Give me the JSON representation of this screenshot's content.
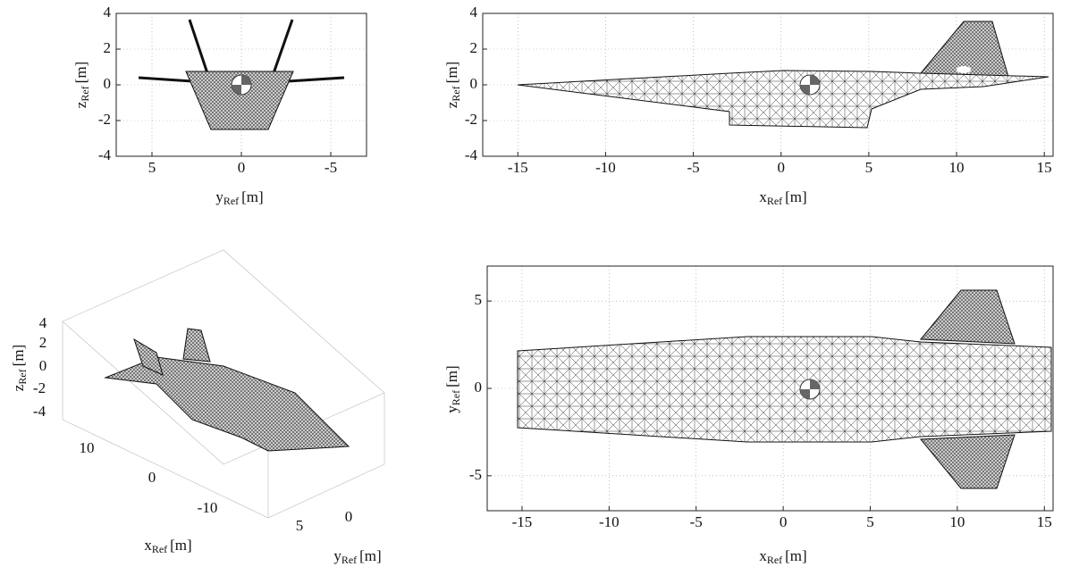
{
  "chart_data": [
    {
      "type": "wireframe-front",
      "xlabel": {
        "text": "y",
        "sub": "Ref",
        "unit": "[m]"
      },
      "ylabel": {
        "text": "z",
        "sub": "Ref",
        "unit": "[m]"
      },
      "xlim": [
        7,
        -7
      ],
      "xticks": [
        5,
        0,
        -5
      ],
      "ylim": [
        -4,
        4
      ],
      "yticks": [
        -4,
        -2,
        0,
        2,
        4
      ],
      "grid": true
    },
    {
      "type": "wireframe-side",
      "xlabel": {
        "text": "x",
        "sub": "Ref",
        "unit": "[m]"
      },
      "ylabel": {
        "text": "z",
        "sub": "Ref",
        "unit": "[m]"
      },
      "xlim": [
        -17,
        15.5
      ],
      "xticks": [
        -15,
        -10,
        -5,
        0,
        5,
        10,
        15
      ],
      "ylim": [
        -4,
        4
      ],
      "yticks": [
        -4,
        -2,
        0,
        2,
        4
      ],
      "grid": true
    },
    {
      "type": "wireframe-3d",
      "xlabel": {
        "text": "x",
        "sub": "Ref",
        "unit": "[m]"
      },
      "ylabel": {
        "text": "y",
        "sub": "Ref",
        "unit": "[m]"
      },
      "zlabel": {
        "text": "z",
        "sub": "Ref",
        "unit": "[m]"
      },
      "xticks": [
        10,
        0,
        -10
      ],
      "yticks": [
        5,
        0
      ],
      "zticks": [
        4,
        2,
        0,
        -2,
        -4
      ],
      "grid": true
    },
    {
      "type": "wireframe-top",
      "xlabel": {
        "text": "x",
        "sub": "Ref",
        "unit": "[m]"
      },
      "ylabel": {
        "text": "y",
        "sub": "Ref",
        "unit": "[m]"
      },
      "xlim": [
        -17,
        15.5
      ],
      "xticks": [
        -15,
        -10,
        -5,
        0,
        5,
        10,
        15
      ],
      "ylim": [
        -7,
        7
      ],
      "yticks": [
        -5,
        0,
        5
      ],
      "grid": true
    }
  ]
}
